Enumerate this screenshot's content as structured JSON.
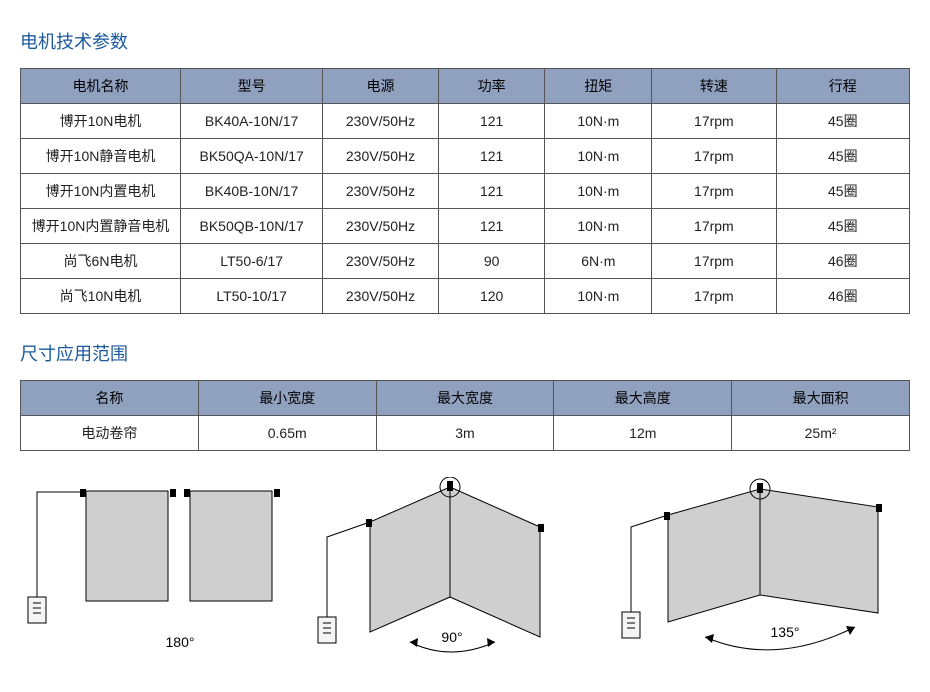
{
  "section1": {
    "title": "电机技术参数",
    "headers": [
      "电机名称",
      "型号",
      "电源",
      "功率",
      "扭矩",
      "转速",
      "行程"
    ],
    "rows": [
      [
        "博开10N电机",
        "BK40A-10N/17",
        "230V/50Hz",
        "121",
        "10N·m",
        "17rpm",
        "45圈"
      ],
      [
        "博开10N静音电机",
        "BK50QA-10N/17",
        "230V/50Hz",
        "121",
        "10N·m",
        "17rpm",
        "45圈"
      ],
      [
        "博开10N内置电机",
        "BK40B-10N/17",
        "230V/50Hz",
        "121",
        "10N·m",
        "17rpm",
        "45圈"
      ],
      [
        "博开10N内置静音电机",
        "BK50QB-10N/17",
        "230V/50Hz",
        "121",
        "10N·m",
        "17rpm",
        "45圈"
      ],
      [
        "尚飞6N电机",
        "LT50-6/17",
        "230V/50Hz",
        "90",
        "6N·m",
        "17rpm",
        "46圈"
      ],
      [
        "尚飞10N电机",
        "LT50-10/17",
        "230V/50Hz",
        "120",
        "10N·m",
        "17rpm",
        "46圈"
      ]
    ],
    "col_widths_pct": [
      18,
      16,
      13,
      12,
      12,
      14,
      15
    ]
  },
  "section2": {
    "title": "尺寸应用范围",
    "headers": [
      "名称",
      "最小宽度",
      "最大宽度",
      "最大高度",
      "最大面积"
    ],
    "rows": [
      [
        "电动卷帘",
        "0.65m",
        "3m",
        "12m",
        "25m²"
      ]
    ],
    "col_widths_pct": [
      20,
      20,
      20,
      20,
      20
    ]
  },
  "diagrams": {
    "items": [
      {
        "label": "180°",
        "angle": 180
      },
      {
        "label": "90°",
        "angle": 90
      },
      {
        "label": "135°",
        "angle": 135
      }
    ],
    "colors": {
      "panel_fill": "#cfcfcf",
      "stroke": "#000000",
      "bg": "#ffffff",
      "switch_fill": "#f5f5f5"
    }
  },
  "style": {
    "header_bg": "#8fa1bf",
    "title_color": "#1b5a9e",
    "border_color": "#555555"
  }
}
